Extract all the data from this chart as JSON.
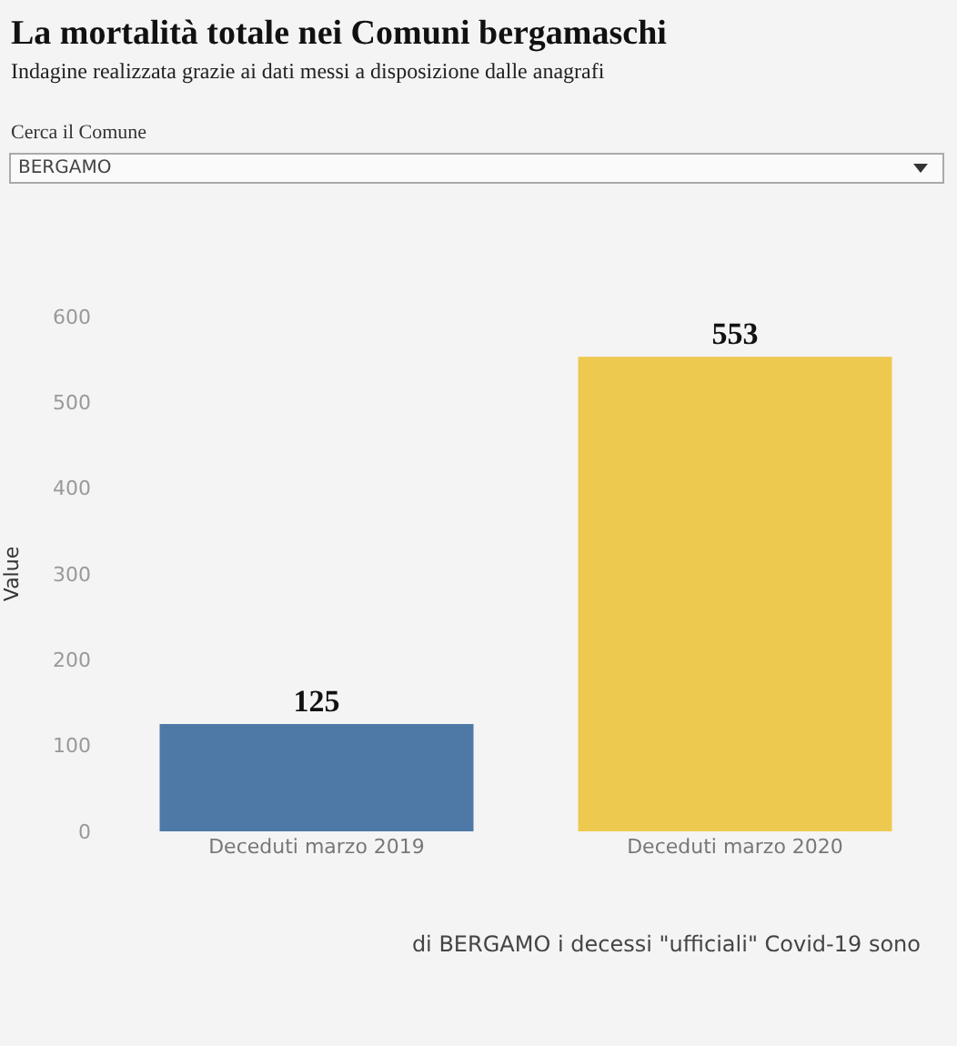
{
  "chart_data": {
    "type": "bar",
    "title": "La mortalità totale nei Comuni bergamaschi",
    "subtitle": "Indagine realizzata grazie ai dati messi a disposizione dalle anagrafi",
    "ylabel": "Value",
    "categories": [
      "Deceduti marzo 2019",
      "Deceduti marzo 2020"
    ],
    "values": [
      125,
      553
    ],
    "colors": [
      "#4e79a7",
      "#edc94f"
    ],
    "ylim": [
      0,
      600
    ],
    "yticks": [
      0,
      100,
      200,
      300,
      400,
      500,
      600
    ],
    "data_labels": true,
    "annotations": [
      "Cerca il Comune",
      "BERGAMO",
      "di  BERGAMO i decessi \"ufficiali\" Covid-19 sono"
    ]
  }
}
